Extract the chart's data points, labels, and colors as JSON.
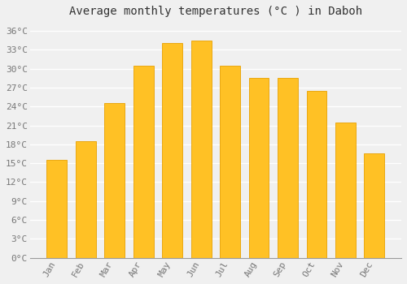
{
  "title": "Average monthly temperatures (°C ) in Daboh",
  "months": [
    "Jan",
    "Feb",
    "Mar",
    "Apr",
    "May",
    "Jun",
    "Jul",
    "Aug",
    "Sep",
    "Oct",
    "Nov",
    "Dec"
  ],
  "values": [
    15.5,
    18.5,
    24.5,
    30.5,
    34.0,
    34.5,
    30.5,
    28.5,
    28.5,
    26.5,
    21.5,
    16.5
  ],
  "bar_color": "#FFC125",
  "bar_edge_color": "#E8A000",
  "background_color": "#F0F0F0",
  "plot_bg_color": "#F0F0F0",
  "grid_color": "#FFFFFF",
  "ytick_labels": [
    "0°C",
    "3°C",
    "6°C",
    "9°C",
    "12°C",
    "15°C",
    "18°C",
    "21°C",
    "24°C",
    "27°C",
    "30°C",
    "33°C",
    "36°C"
  ],
  "ytick_values": [
    0,
    3,
    6,
    9,
    12,
    15,
    18,
    21,
    24,
    27,
    30,
    33,
    36
  ],
  "ylim": [
    0,
    37.5
  ],
  "title_fontsize": 10,
  "tick_fontsize": 8,
  "tick_color": "#777777"
}
